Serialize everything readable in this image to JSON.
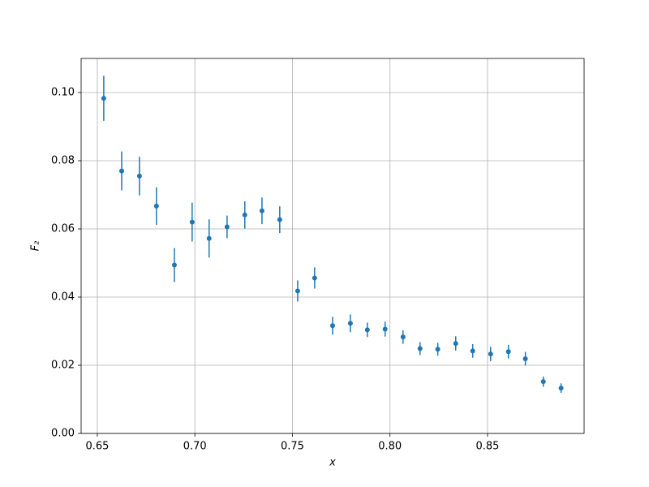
{
  "chart_data": {
    "type": "errorbar",
    "xlabel": "x",
    "ylabel": "F₂",
    "x": [
      0.6533,
      0.6625,
      0.6716,
      0.6803,
      0.6895,
      0.6986,
      0.7073,
      0.7165,
      0.7256,
      0.7344,
      0.7435,
      0.7527,
      0.7614,
      0.7706,
      0.7797,
      0.7884,
      0.7975,
      0.8067,
      0.8154,
      0.8245,
      0.8337,
      0.8424,
      0.8516,
      0.8607,
      0.8694,
      0.8786,
      0.8877
    ],
    "values": [
      0.0983,
      0.077,
      0.0755,
      0.0667,
      0.0494,
      0.062,
      0.0572,
      0.0606,
      0.0641,
      0.0653,
      0.0627,
      0.0418,
      0.0456,
      0.0316,
      0.0323,
      0.0304,
      0.0306,
      0.0283,
      0.0249,
      0.0247,
      0.0264,
      0.0242,
      0.0233,
      0.024,
      0.0219,
      0.0152,
      0.0133
    ],
    "errors": [
      0.0066,
      0.0057,
      0.0057,
      0.0055,
      0.005,
      0.0057,
      0.0056,
      0.0033,
      0.004,
      0.0039,
      0.0039,
      0.0031,
      0.0031,
      0.0026,
      0.0026,
      0.0021,
      0.0022,
      0.002,
      0.0019,
      0.0019,
      0.0021,
      0.002,
      0.0021,
      0.002,
      0.002,
      0.0015,
      0.0014
    ],
    "color": "#1f77b4",
    "xlim": [
      0.6417,
      0.8995
    ],
    "xticks": [
      {
        "value": 0.65,
        "label": "0.65"
      },
      {
        "value": 0.7,
        "label": "0.70"
      },
      {
        "value": 0.75,
        "label": "0.75"
      },
      {
        "value": 0.8,
        "label": "0.80"
      },
      {
        "value": 0.85,
        "label": "0.85"
      }
    ],
    "ylim": [
      0,
      0.11
    ],
    "yticks": [
      {
        "value": 0,
        "label": "0.00"
      },
      {
        "value": 0.02,
        "label": "0.02"
      },
      {
        "value": 0.04,
        "label": "0.04"
      },
      {
        "value": 0.06,
        "label": "0.06"
      },
      {
        "value": 0.08,
        "label": "0.08"
      },
      {
        "value": 0.1,
        "label": "0.10"
      }
    ],
    "grid": true
  }
}
